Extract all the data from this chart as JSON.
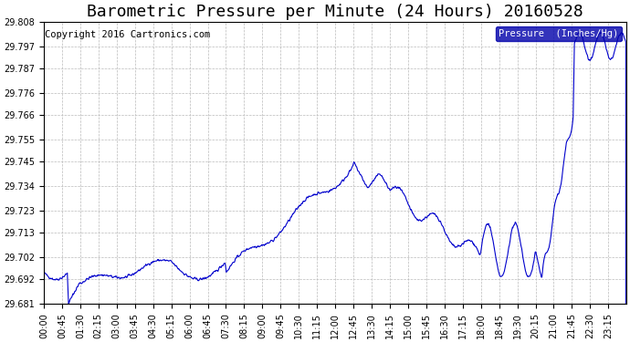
{
  "title": "Barometric Pressure per Minute (24 Hours) 20160528",
  "copyright": "Copyright 2016 Cartronics.com",
  "legend_label": "Pressure  (Inches/Hg)",
  "line_color": "#0000cc",
  "background_color": "#ffffff",
  "legend_bg": "#0000aa",
  "legend_text_color": "#ffffff",
  "ylim": [
    29.681,
    29.808
  ],
  "yticks": [
    29.681,
    29.692,
    29.702,
    29.713,
    29.723,
    29.734,
    29.745,
    29.755,
    29.766,
    29.776,
    29.787,
    29.797,
    29.808
  ],
  "xtick_labels": [
    "00:00",
    "00:45",
    "01:30",
    "02:15",
    "03:00",
    "03:45",
    "04:30",
    "05:15",
    "06:00",
    "06:45",
    "07:30",
    "08:15",
    "09:00",
    "09:45",
    "10:30",
    "11:15",
    "12:00",
    "12:45",
    "13:30",
    "14:15",
    "15:00",
    "15:45",
    "16:30",
    "17:15",
    "18:00",
    "18:45",
    "19:30",
    "20:15",
    "21:00",
    "21:45",
    "22:30",
    "23:15"
  ],
  "title_fontsize": 13,
  "copyright_fontsize": 7.5,
  "tick_fontsize": 7,
  "grid_color": "#bbbbbb",
  "grid_linestyle": "--"
}
